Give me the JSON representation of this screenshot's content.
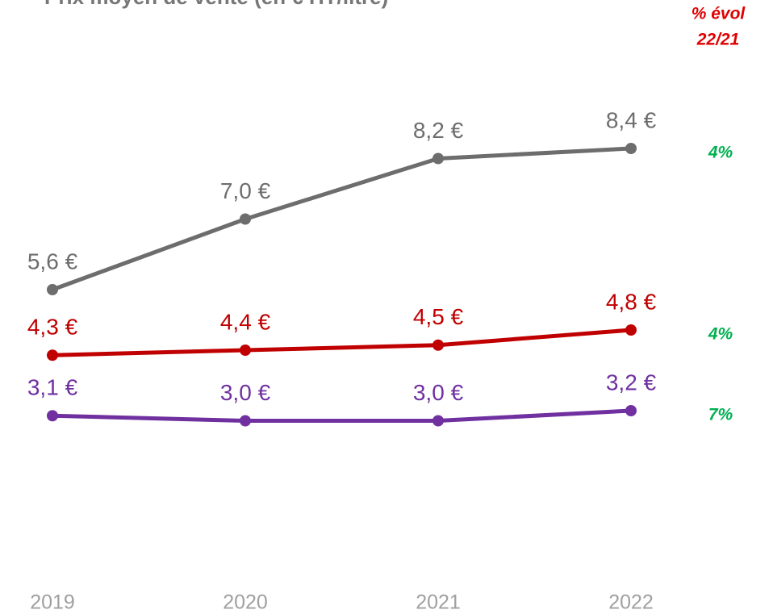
{
  "chart_data": {
    "type": "line",
    "title": "Prix moyen de vente (en € HT/litre)",
    "evol_header": [
      "% évol",
      "22/21"
    ],
    "categories": [
      "2019",
      "2020",
      "2021",
      "2022"
    ],
    "ylim": [
      0,
      10
    ],
    "series": [
      {
        "name": null,
        "color": "#6d6d6d",
        "values": [
          5.6,
          7.0,
          8.2,
          8.4
        ],
        "value_labels": [
          "5,6 €",
          "7,0 €",
          "8,2 €",
          "8,4 €"
        ],
        "evol_label": "4%"
      },
      {
        "name": null,
        "color": "#c00000",
        "values": [
          4.3,
          4.4,
          4.5,
          4.8
        ],
        "value_labels": [
          "4,3 €",
          "4,4 €",
          "4,5 €",
          "4,8 €"
        ],
        "evol_label": "4%"
      },
      {
        "name": null,
        "color": "#7030a0",
        "values": [
          3.1,
          3.0,
          3.0,
          3.2
        ],
        "value_labels": [
          "3,1 €",
          "3,0 €",
          "3,0 €",
          "3,2 €"
        ],
        "evol_label": "7%"
      }
    ]
  }
}
